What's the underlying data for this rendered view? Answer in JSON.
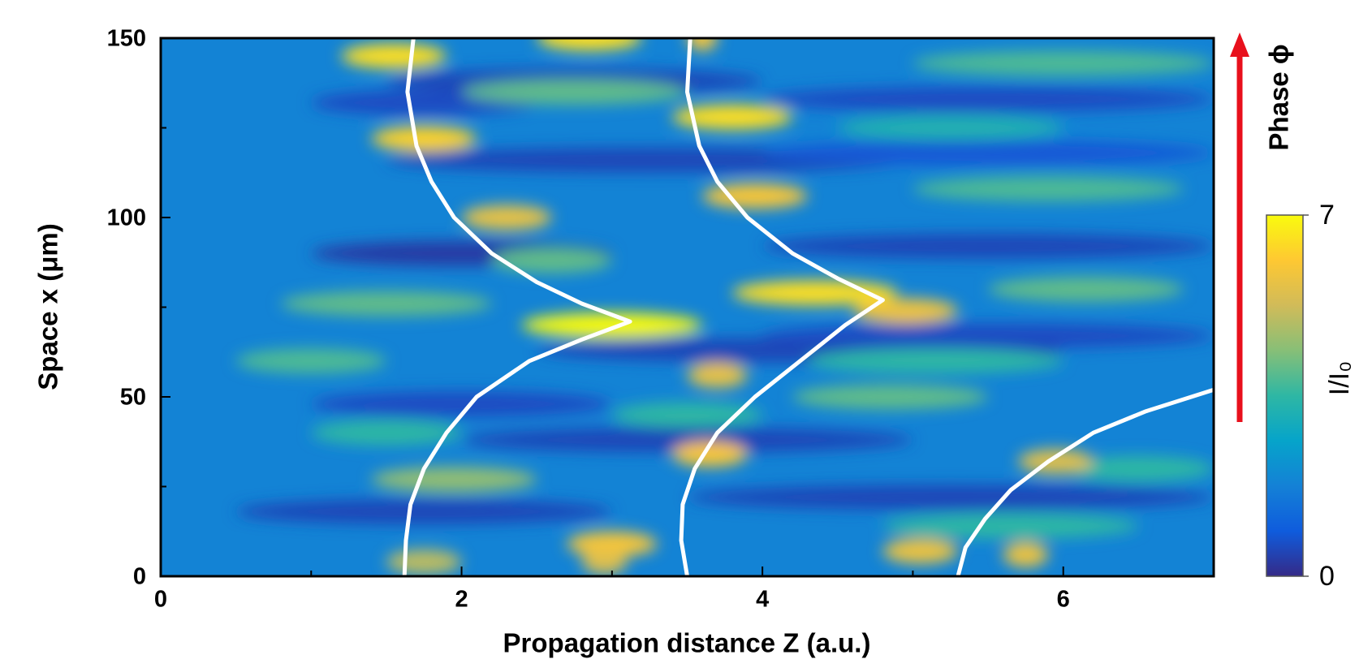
{
  "chart_data": {
    "type": "heatmap",
    "xlabel": "Propagation distance Z (a.u.)",
    "ylabel": "Space  x (μm)",
    "annotation": "Phase ϕ",
    "xlim": [
      0,
      7
    ],
    "xticks": [
      0,
      2,
      4,
      6
    ],
    "xminor": [
      1,
      3,
      5,
      7
    ],
    "ylim": [
      0,
      150
    ],
    "yticks": [
      0,
      50,
      100,
      150
    ],
    "yminor": [
      25,
      75,
      125
    ],
    "clim": [
      0,
      7
    ],
    "cticks": [
      0,
      7
    ],
    "colorbar_label": "I/I₀",
    "colormap": [
      "#352a87",
      "#0f5cdd",
      "#1481d6",
      "#06a4ca",
      "#2eb7a4",
      "#87bf77",
      "#d1bb59",
      "#fec832",
      "#f9fb0e"
    ],
    "background_value": 1.8,
    "spots": [
      {
        "z": [
          1.5,
          4
        ],
        "x": 138,
        "value": 0.5
      },
      {
        "z": [
          1.5,
          5
        ],
        "x": 116,
        "value": 0.5
      },
      {
        "z": [
          1,
          3
        ],
        "x": 90,
        "value": 0.3
      },
      {
        "z": [
          2.5,
          6
        ],
        "x": 63,
        "value": 0.5
      },
      {
        "z": [
          1,
          3
        ],
        "x": 48,
        "value": 0.6
      },
      {
        "z": [
          2,
          5
        ],
        "x": 38,
        "value": 0.5
      },
      {
        "z": [
          0.5,
          3
        ],
        "x": 18,
        "value": 0.5
      },
      {
        "z": [
          3.5,
          7
        ],
        "x": 22,
        "value": 0.5
      },
      {
        "z": [
          4,
          7
        ],
        "x": 92,
        "value": 0.5
      },
      {
        "z": [
          4,
          7
        ],
        "x": 133,
        "value": 0.6
      },
      {
        "z": [
          4,
          7
        ],
        "x": 67,
        "value": 0.6
      },
      {
        "z": [
          1,
          2.5
        ],
        "x": 132,
        "value": 0.6
      },
      {
        "z": [
          4,
          7
        ],
        "x": 118,
        "value": 0.8
      },
      {
        "z": [
          0.8,
          2.2
        ],
        "x": 76,
        "value": 4
      },
      {
        "z": [
          0.5,
          1.5
        ],
        "x": 60,
        "value": 3.8
      },
      {
        "z": [
          1.4,
          2.5
        ],
        "x": 27,
        "value": 4.5
      },
      {
        "z": [
          2.2,
          3
        ],
        "x": 88,
        "value": 4
      },
      {
        "z": [
          4.2,
          5.5
        ],
        "x": 50,
        "value": 4
      },
      {
        "z": [
          4.8,
          6.5
        ],
        "x": 14,
        "value": 3.5
      },
      {
        "z": [
          5,
          6.8
        ],
        "x": 108,
        "value": 3.8
      },
      {
        "z": [
          5,
          7
        ],
        "x": 143,
        "value": 3.8
      },
      {
        "z": [
          5.5,
          6.8
        ],
        "x": 80,
        "value": 4
      },
      {
        "z": [
          4.3,
          6
        ],
        "x": 60,
        "value": 3.5
      },
      {
        "z": [
          1,
          2
        ],
        "x": 40,
        "value": 3.5
      },
      {
        "z": [
          2,
          3.5
        ],
        "x": 135,
        "value": 4
      },
      {
        "z": [
          4.5,
          6
        ],
        "x": 125,
        "value": 3.2
      },
      {
        "z": [
          6,
          7
        ],
        "x": 30,
        "value": 3.5
      },
      {
        "z": [
          3,
          4
        ],
        "x": 45,
        "value": 3.5
      },
      {
        "z": [
          1.2,
          1.9
        ],
        "x": 145,
        "value": 6.5
      },
      {
        "z": [
          1.4,
          2.1
        ],
        "x": 122,
        "value": 6.3
      },
      {
        "z": [
          2.4,
          3.6
        ],
        "x": 70,
        "value": 7
      },
      {
        "z": [
          3.4,
          4.2
        ],
        "x": 128,
        "value": 6.5
      },
      {
        "z": [
          3.6,
          4.3
        ],
        "x": 106,
        "value": 6
      },
      {
        "z": [
          3.8,
          4.9
        ],
        "x": 79,
        "value": 6.5
      },
      {
        "z": [
          4.6,
          5.3
        ],
        "x": 74,
        "value": 5.8
      },
      {
        "z": [
          2.5,
          3.2
        ],
        "x": 150,
        "value": 6.5
      },
      {
        "z": [
          3.5,
          3.7
        ],
        "x": 150,
        "value": 6
      },
      {
        "z": [
          2.7,
          3.3
        ],
        "x": 9,
        "value": 6
      },
      {
        "z": [
          3.4,
          3.9
        ],
        "x": 34,
        "value": 6
      },
      {
        "z": [
          4.8,
          5.3
        ],
        "x": 7,
        "value": 5.8
      },
      {
        "z": [
          5.6,
          5.9
        ],
        "x": 6,
        "value": 5.8
      },
      {
        "z": [
          5.7,
          6.2
        ],
        "x": 32,
        "value": 5.5
      },
      {
        "z": [
          2,
          2.6
        ],
        "x": 100,
        "value": 5.7
      },
      {
        "z": [
          3.5,
          3.9
        ],
        "x": 56,
        "value": 5.7
      },
      {
        "z": [
          1.5,
          2
        ],
        "x": 4,
        "value": 5
      },
      {
        "z": [
          2.8,
          3.1
        ],
        "x": 4,
        "value": 5.5
      }
    ],
    "series": [
      {
        "color": "#ffffff",
        "x": [
          1.62,
          1.63,
          1.66,
          1.75,
          1.9,
          2.1,
          2.45,
          2.8,
          3.12,
          2.8,
          2.5,
          2.2,
          1.95,
          1.8,
          1.7,
          1.64,
          1.68
        ],
        "values": [
          0,
          10,
          20,
          30,
          40,
          50,
          60,
          66,
          71,
          76,
          82,
          90,
          100,
          110,
          120,
          135,
          150
        ]
      },
      {
        "color": "#ffffff",
        "x": [
          3.5,
          3.46,
          3.47,
          3.55,
          3.7,
          3.95,
          4.25,
          4.55,
          4.8,
          4.5,
          4.2,
          3.9,
          3.7,
          3.58,
          3.5,
          3.52
        ],
        "values": [
          0,
          10,
          20,
          30,
          40,
          50,
          60,
          70,
          77,
          83,
          90,
          100,
          110,
          120,
          135,
          150
        ]
      },
      {
        "color": "#ffffff",
        "x": [
          5.3,
          5.35,
          5.48,
          5.65,
          5.9,
          6.2,
          6.55,
          7.0
        ],
        "values": [
          0,
          8,
          16,
          24,
          32,
          40,
          46,
          52
        ]
      }
    ]
  }
}
